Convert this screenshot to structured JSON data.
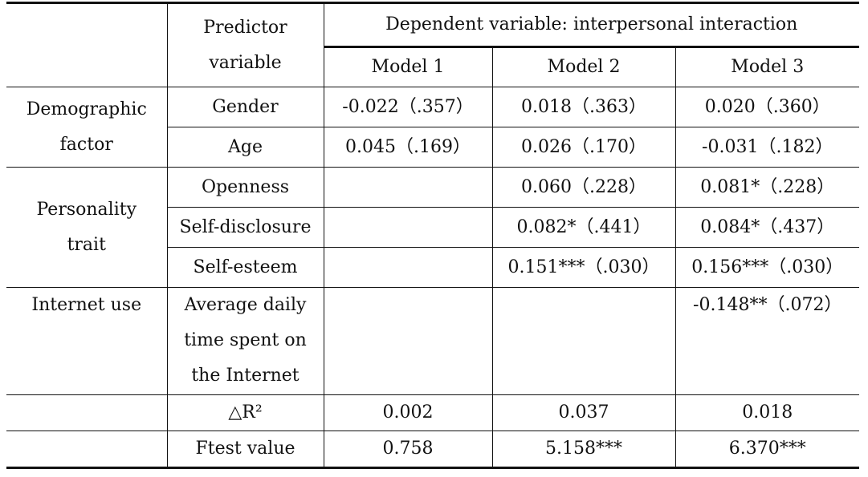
{
  "table": {
    "header": {
      "predictor_line1": "Predictor",
      "predictor_line2": "variable",
      "dependent": "Dependent variable: interpersonal interaction",
      "models": [
        "Model 1",
        "Model 2",
        "Model 3"
      ]
    },
    "groups": {
      "demographic_line1": "Demographic",
      "demographic_line2": "factor",
      "personality_line1": "Personality",
      "personality_line2": "trait",
      "internet": "Internet use"
    },
    "rows": {
      "gender": {
        "label": "Gender",
        "m1": "-0.022（.357）",
        "m2": "0.018（.363）",
        "m3": "0.020（.360）"
      },
      "age": {
        "label": "Age",
        "m1": "0.045（.169）",
        "m2": "0.026（.170）",
        "m3": "-0.031（.182）"
      },
      "openness": {
        "label": "Openness",
        "m1": "",
        "m2": "0.060（.228）",
        "m3": "0.081*（.228）"
      },
      "self_disclosure": {
        "label": "Self-disclosure",
        "m1": "",
        "m2": "0.082*（.441）",
        "m3": "0.084*（.437）"
      },
      "self_esteem": {
        "label": "Self-esteem",
        "m1": "",
        "m2": "0.151***（.030）",
        "m3": "0.156***（.030）"
      },
      "internet_time": {
        "label_line1": "Average daily",
        "label_line2": "time spent on",
        "label_line3": "the Internet",
        "m1": "",
        "m2": "",
        "m3": "-0.148**（.072）"
      },
      "delta_r2": {
        "label": "△R²",
        "m1": "0.002",
        "m2": "0.037",
        "m3": "0.018"
      },
      "ftest": {
        "label": "Ftest value",
        "m1": "0.758",
        "m2": "5.158***",
        "m3": "6.370***"
      }
    }
  }
}
